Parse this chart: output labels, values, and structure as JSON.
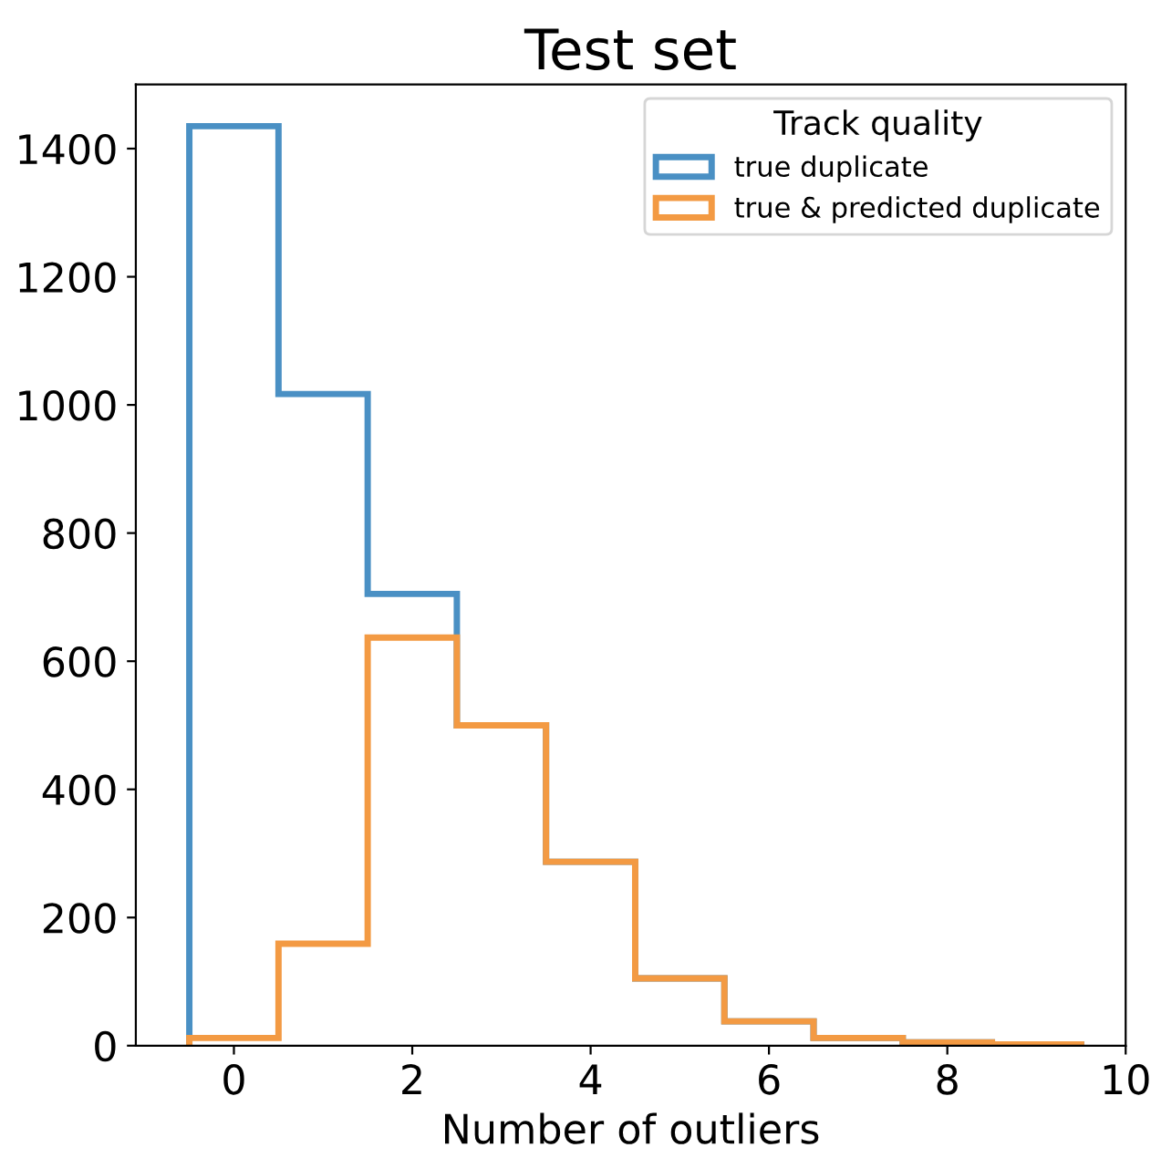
{
  "chart_data": {
    "type": "histogram",
    "title": "Test set",
    "xlabel": "Number of outliers",
    "legend_title": "Track quality",
    "bins": [
      -0.5,
      0.5,
      1.5,
      2.5,
      3.5,
      4.5,
      5.5,
      6.5,
      7.5,
      8.5,
      9.5
    ],
    "series": [
      {
        "name": "true duplicate",
        "color": "#4a90c4",
        "values": [
          1435,
          1017,
          705,
          500,
          287,
          105,
          38,
          12,
          5,
          2
        ]
      },
      {
        "name": "true & predicted duplicate",
        "color": "#f39a43",
        "values": [
          12,
          159,
          637,
          500,
          287,
          105,
          38,
          12,
          5,
          2
        ]
      }
    ],
    "xlim": [
      -1.1,
      10
    ],
    "xticks": [
      0,
      2,
      4,
      6,
      8,
      10
    ],
    "ylim": [
      0,
      1500
    ],
    "yticks": [
      0,
      200,
      400,
      600,
      800,
      1000,
      1200,
      1400
    ],
    "grid": false,
    "legend": "top right"
  }
}
